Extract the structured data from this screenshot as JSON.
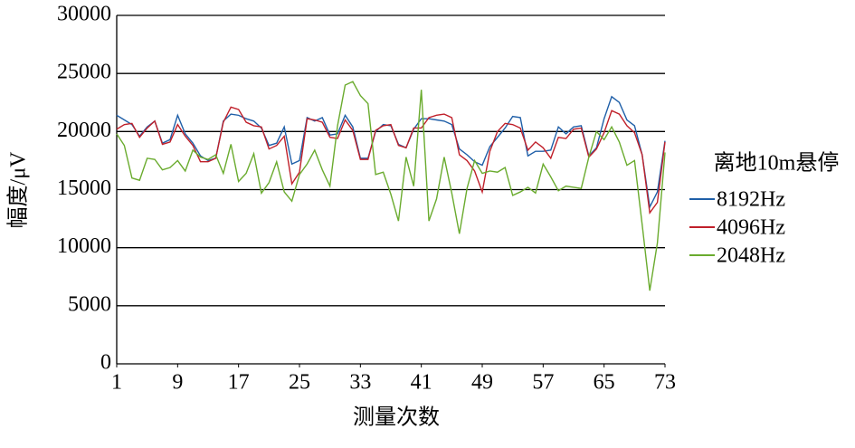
{
  "chart_data": {
    "type": "line",
    "x": [
      1,
      2,
      3,
      4,
      5,
      6,
      7,
      8,
      9,
      10,
      11,
      12,
      13,
      14,
      15,
      16,
      17,
      18,
      19,
      20,
      21,
      22,
      23,
      24,
      25,
      26,
      27,
      28,
      29,
      30,
      31,
      32,
      33,
      34,
      35,
      36,
      37,
      38,
      39,
      40,
      41,
      42,
      43,
      44,
      45,
      46,
      47,
      48,
      49,
      50,
      51,
      52,
      53,
      54,
      55,
      56,
      57,
      58,
      59,
      60,
      61,
      62,
      63,
      64,
      65,
      66,
      67,
      68,
      69,
      70,
      71,
      72,
      73
    ],
    "xlim": [
      1,
      73
    ],
    "xticks": [
      1,
      9,
      17,
      25,
      33,
      41,
      49,
      57,
      65,
      73
    ],
    "ylim": [
      0,
      30000
    ],
    "yticks": [
      0,
      5000,
      10000,
      15000,
      20000,
      25000,
      30000
    ],
    "xlabel": "测量次数",
    "ylabel": "幅度/μV",
    "legend_title": "离地10m悬停",
    "grid": true,
    "series": [
      {
        "name": "8192Hz",
        "color": "#1f5fa8",
        "values": [
          21400,
          21000,
          20600,
          19600,
          20400,
          20900,
          19000,
          19300,
          21400,
          19800,
          19000,
          17900,
          17500,
          17700,
          20900,
          21500,
          21400,
          21100,
          20900,
          20300,
          18800,
          19000,
          20400,
          17200,
          17500,
          21200,
          20900,
          21200,
          19700,
          19800,
          21400,
          20400,
          17700,
          17700,
          20000,
          20600,
          20500,
          18900,
          18600,
          20200,
          21100,
          21100,
          21000,
          20900,
          20600,
          18500,
          18000,
          17400,
          17100,
          18700,
          19500,
          20300,
          21300,
          21200,
          17900,
          18300,
          18300,
          18400,
          20400,
          19800,
          20400,
          20500,
          17900,
          18600,
          21100,
          23000,
          22500,
          21000,
          20500,
          18000,
          13500,
          14800,
          19200
        ]
      },
      {
        "name": "4096Hz",
        "color": "#c0202a",
        "values": [
          20200,
          20600,
          20700,
          19500,
          20300,
          20900,
          18900,
          19100,
          20600,
          19600,
          18800,
          17400,
          17400,
          17700,
          20800,
          22100,
          21900,
          20800,
          20500,
          20400,
          18500,
          18800,
          19600,
          15500,
          16500,
          21100,
          21000,
          20800,
          19500,
          19400,
          21000,
          20100,
          17600,
          17600,
          20100,
          20500,
          20600,
          18800,
          18600,
          20300,
          20300,
          21200,
          21400,
          21500,
          21200,
          18000,
          17500,
          16600,
          14800,
          18300,
          20000,
          20700,
          20600,
          20300,
          18400,
          19100,
          18600,
          17700,
          19500,
          19400,
          20200,
          20300,
          17800,
          18500,
          19900,
          21800,
          21500,
          20500,
          19900,
          18000,
          13000,
          13900,
          19100
        ]
      },
      {
        "name": "2048Hz",
        "color": "#6aab2e",
        "values": [
          19800,
          18800,
          16000,
          15800,
          17700,
          17600,
          16700,
          16900,
          17500,
          16600,
          18400,
          17800,
          17600,
          18000,
          16400,
          18900,
          15700,
          16400,
          18100,
          14700,
          15600,
          17400,
          14800,
          14000,
          16300,
          17200,
          18400,
          16700,
          15300,
          20500,
          24000,
          24300,
          23100,
          22400,
          16300,
          16500,
          14600,
          12300,
          17800,
          15300,
          23600,
          12300,
          14200,
          17800,
          14700,
          11200,
          15100,
          17500,
          16400,
          16600,
          16500,
          16900,
          14500,
          14800,
          15200,
          14700,
          17200,
          16100,
          14900,
          15300,
          15200,
          15100,
          17800,
          20000,
          19300,
          20400,
          19100,
          17100,
          17500,
          12000,
          6300,
          10400,
          18200
        ]
      }
    ]
  }
}
